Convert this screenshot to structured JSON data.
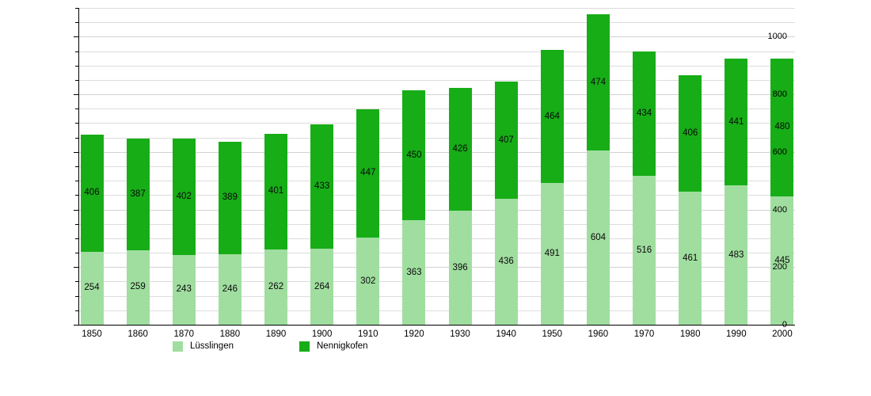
{
  "chart_data": {
    "type": "bar",
    "stacked": true,
    "title": "",
    "xlabel": "",
    "ylabel": "",
    "categories": [
      "1850",
      "1860",
      "1870",
      "1880",
      "1890",
      "1900",
      "1910",
      "1920",
      "1930",
      "1940",
      "1950",
      "1960",
      "1970",
      "1980",
      "1990",
      "2000"
    ],
    "series": [
      {
        "name": "Lüsslingen",
        "color": "#a0dea0",
        "values": [
          254,
          259,
          243,
          246,
          262,
          264,
          302,
          363,
          396,
          436,
          491,
          604,
          516,
          461,
          483,
          445
        ]
      },
      {
        "name": "Nennigkofen",
        "color": "#17ad17",
        "values": [
          406,
          387,
          402,
          389,
          401,
          433,
          447,
          450,
          426,
          407,
          464,
          474,
          434,
          406,
          441,
          480
        ]
      }
    ],
    "ylim": [
      0,
      1100
    ],
    "yticks": [
      0,
      200,
      400,
      600,
      800,
      1000
    ],
    "minor_tick_step": 50,
    "grid": true,
    "bar_value_labels": true,
    "legend_position": "bottom"
  },
  "colors": {
    "background": "#ffffff",
    "grid_minor": "#dcdcdc",
    "grid_major": "#d2d2d2",
    "axis": "#000000",
    "text": "#000000"
  }
}
